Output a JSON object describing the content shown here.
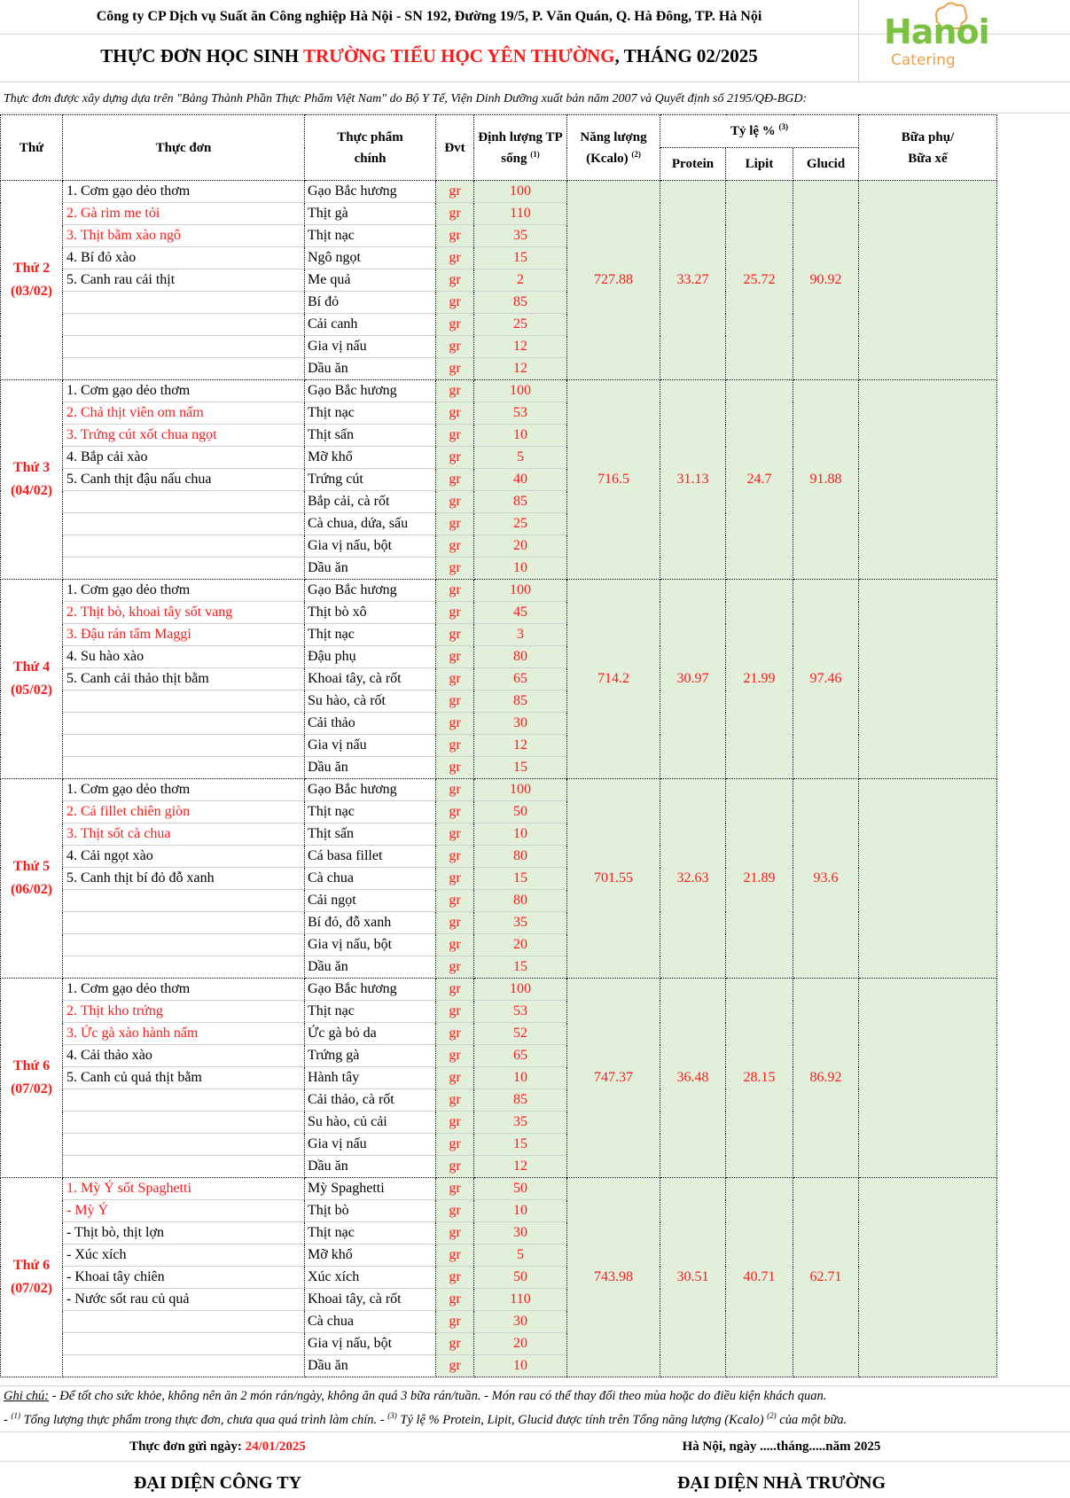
{
  "header": {
    "company": "Công ty CP Dịch vụ Suất ăn Công nghiệp Hà Nội - SN 192, Đường 19/5, P. Văn Quán, Q. Hà Đông, TP. Hà Nội",
    "title_prefix": "THỰC ĐƠN HỌC SINH ",
    "title_school": "TRƯỜNG TIỂU HỌC YÊN THƯỜNG",
    "title_suffix": ", THÁNG 02/2025",
    "logo_top": "Hanoi",
    "logo_bottom": "Catering",
    "note": "Thực đơn được xây dựng dựa trên \"Bảng Thành Phần Thực Phẩm Việt Nam\" do Bộ Y Tế, Viện Dinh Dưỡng xuất bản năm 2007 và Quyết định số 2195/QĐ-BGD:"
  },
  "columns": {
    "thu": "Thứ",
    "thuc_don": "Thực đơn",
    "thuc_pham": "Thực phẩm chính",
    "dvt": "Đvt",
    "dinh_luong": "Định lượng TP sống",
    "dinh_luong_sup": "(1)",
    "nang_luong": "Năng lượng (Kcalo)",
    "nang_luong_sup": "(2)",
    "ty_le": "Tỷ lệ %",
    "ty_le_sup": "(3)",
    "protein": "Protein",
    "lipit": "Lipit",
    "glucid": "Glucid",
    "bua_phu": "Bữa phụ/ Bữa xế"
  },
  "colors": {
    "accent_red": "#ff1a1a",
    "summary_green": "#e2efda",
    "logo_green": "#7cc242",
    "logo_orange": "#f0a04b"
  },
  "days": [
    {
      "day": "Thứ 2",
      "date": "(03/02)",
      "dishes": [
        {
          "text": "1. Cơm gạo dẻo thơm",
          "red": false
        },
        {
          "text": "2. Gà rim me tỏi",
          "red": true
        },
        {
          "text": "3. Thịt bằm xào ngô",
          "red": true
        },
        {
          "text": "4. Bí đỏ xào",
          "red": false
        },
        {
          "text": "5. Canh rau cải thịt",
          "red": false
        }
      ],
      "ingredients": [
        {
          "name": "Gạo Bắc hương",
          "unit": "gr",
          "qty": "100"
        },
        {
          "name": "Thịt gà",
          "unit": "gr",
          "qty": "110"
        },
        {
          "name": "Thịt nạc",
          "unit": "gr",
          "qty": "35"
        },
        {
          "name": "Ngô ngọt",
          "unit": "gr",
          "qty": "15"
        },
        {
          "name": "Me quả",
          "unit": "gr",
          "qty": "2"
        },
        {
          "name": "Bí đỏ",
          "unit": "gr",
          "qty": "85"
        },
        {
          "name": "Cải canh",
          "unit": "gr",
          "qty": "25"
        },
        {
          "name": "Gia vị nấu",
          "unit": "gr",
          "qty": "12"
        },
        {
          "name": "Dầu ăn",
          "unit": "gr",
          "qty": "12"
        }
      ],
      "energy": "727.88",
      "protein": "33.27",
      "lipit": "25.72",
      "glucid": "90.92"
    },
    {
      "day": "Thứ 3",
      "date": "(04/02)",
      "dishes": [
        {
          "text": "1. Cơm gạo dẻo thơm",
          "red": false
        },
        {
          "text": "2. Chả thịt viên om nấm",
          "red": true
        },
        {
          "text": "3. Trứng cút xốt chua ngọt",
          "red": true
        },
        {
          "text": "4. Bắp cải xào",
          "red": false
        },
        {
          "text": "5. Canh thịt đậu nấu chua",
          "red": false
        }
      ],
      "ingredients": [
        {
          "name": "Gạo Bắc hương",
          "unit": "gr",
          "qty": "100"
        },
        {
          "name": "Thịt nạc",
          "unit": "gr",
          "qty": "53"
        },
        {
          "name": "Thịt sấn",
          "unit": "gr",
          "qty": "10"
        },
        {
          "name": "Mỡ khổ",
          "unit": "gr",
          "qty": "5"
        },
        {
          "name": "Trứng cút",
          "unit": "gr",
          "qty": "40"
        },
        {
          "name": "Bắp cải, cà rốt",
          "unit": "gr",
          "qty": "85"
        },
        {
          "name": "Cà chua, dứa, sấu",
          "unit": "gr",
          "qty": "25"
        },
        {
          "name": "Gia vị nấu, bột",
          "unit": "gr",
          "qty": "20"
        },
        {
          "name": "Dầu ăn",
          "unit": "gr",
          "qty": "10"
        }
      ],
      "energy": "716.5",
      "protein": "31.13",
      "lipit": "24.7",
      "glucid": "91.88"
    },
    {
      "day": "Thứ 4",
      "date": "(05/02)",
      "dishes": [
        {
          "text": "1. Cơm gạo dẻo thơm",
          "red": false
        },
        {
          "text": "2. Thịt bò, khoai tây sốt vang",
          "red": true
        },
        {
          "text": "3. Đậu rán tẩm Maggi",
          "red": true
        },
        {
          "text": "4. Su hào xào",
          "red": false
        },
        {
          "text": "5. Canh cải thảo thịt bằm",
          "red": false
        }
      ],
      "ingredients": [
        {
          "name": "Gạo Bắc hương",
          "unit": "gr",
          "qty": "100"
        },
        {
          "name": "Thịt bò xô",
          "unit": "gr",
          "qty": "45"
        },
        {
          "name": "Thịt nạc",
          "unit": "gr",
          "qty": "3"
        },
        {
          "name": "Đậu phụ",
          "unit": "gr",
          "qty": "80"
        },
        {
          "name": "Khoai tây, cà rốt",
          "unit": "gr",
          "qty": "65"
        },
        {
          "name": "Su hào, cà rốt",
          "unit": "gr",
          "qty": "85"
        },
        {
          "name": "Cải thảo",
          "unit": "gr",
          "qty": "30"
        },
        {
          "name": "Gia vị nấu",
          "unit": "gr",
          "qty": "12"
        },
        {
          "name": "Dầu ăn",
          "unit": "gr",
          "qty": "15"
        }
      ],
      "energy": "714.2",
      "protein": "30.97",
      "lipit": "21.99",
      "glucid": "97.46"
    },
    {
      "day": "Thứ 5",
      "date": "(06/02)",
      "dishes": [
        {
          "text": "1. Cơm gạo dẻo thơm",
          "red": false
        },
        {
          "text": "2. Cá fillet chiên giòn",
          "red": true
        },
        {
          "text": "3. Thịt sốt cà chua",
          "red": true
        },
        {
          "text": "4. Cải ngọt xào",
          "red": false
        },
        {
          "text": "5. Canh thịt bí đỏ đỗ xanh",
          "red": false
        }
      ],
      "ingredients": [
        {
          "name": "Gạo Bắc hương",
          "unit": "gr",
          "qty": "100"
        },
        {
          "name": "Thịt nạc",
          "unit": "gr",
          "qty": "50"
        },
        {
          "name": "Thịt sấn",
          "unit": "gr",
          "qty": "10"
        },
        {
          "name": "Cá basa fillet",
          "unit": "gr",
          "qty": "80"
        },
        {
          "name": "Cà chua",
          "unit": "gr",
          "qty": "15"
        },
        {
          "name": "Cải ngọt",
          "unit": "gr",
          "qty": "80"
        },
        {
          "name": "Bí đỏ, đỗ xanh",
          "unit": "gr",
          "qty": "35"
        },
        {
          "name": "Gia vị nấu, bột",
          "unit": "gr",
          "qty": "20"
        },
        {
          "name": "Dầu ăn",
          "unit": "gr",
          "qty": "15"
        }
      ],
      "energy": "701.55",
      "protein": "32.63",
      "lipit": "21.89",
      "glucid": "93.6"
    },
    {
      "day": "Thứ 6",
      "date": "(07/02)",
      "dishes": [
        {
          "text": "1. Cơm gạo dẻo thơm",
          "red": false
        },
        {
          "text": "2. Thịt kho trứng",
          "red": true
        },
        {
          "text": "3. Ức gà xào hành nấm",
          "red": true
        },
        {
          "text": "4. Cải thảo xào",
          "red": false
        },
        {
          "text": "5. Canh củ quả thịt bằm",
          "red": false
        }
      ],
      "ingredients": [
        {
          "name": "Gạo Bắc hương",
          "unit": "gr",
          "qty": "100"
        },
        {
          "name": "Thịt nạc",
          "unit": "gr",
          "qty": "53"
        },
        {
          "name": "Ức gà bỏ da",
          "unit": "gr",
          "qty": "52"
        },
        {
          "name": "Trứng gà",
          "unit": "gr",
          "qty": "65"
        },
        {
          "name": "Hành tây",
          "unit": "gr",
          "qty": "10"
        },
        {
          "name": "Cải thảo, cà rốt",
          "unit": "gr",
          "qty": "85"
        },
        {
          "name": "Su hào, củ cải",
          "unit": "gr",
          "qty": "35"
        },
        {
          "name": "Gia vị nấu",
          "unit": "gr",
          "qty": "15"
        },
        {
          "name": "Dầu ăn",
          "unit": "gr",
          "qty": "12"
        }
      ],
      "energy": "747.37",
      "protein": "36.48",
      "lipit": "28.15",
      "glucid": "86.92"
    },
    {
      "day": "Thứ 6",
      "date": "(07/02)",
      "dishes": [
        {
          "text": "1. Mỳ Ý sốt Spaghetti",
          "red": true
        },
        {
          "text": "- Mỳ Ý",
          "red": true
        },
        {
          "text": "- Thịt bò, thịt lợn",
          "red": false
        },
        {
          "text": "- Xúc xích",
          "red": false
        },
        {
          "text": "- Khoai tây chiên",
          "red": false
        },
        {
          "text": "- Nước sốt rau củ quả",
          "red": false
        }
      ],
      "ingredients": [
        {
          "name": "Mỳ Spaghetti",
          "unit": "gr",
          "qty": "50"
        },
        {
          "name": "Thịt bò",
          "unit": "gr",
          "qty": "10"
        },
        {
          "name": "Thịt nạc",
          "unit": "gr",
          "qty": "30"
        },
        {
          "name": "Mỡ khổ",
          "unit": "gr",
          "qty": "5"
        },
        {
          "name": "Xúc xích",
          "unit": "gr",
          "qty": "50"
        },
        {
          "name": "Khoai tây, cà rốt",
          "unit": "gr",
          "qty": "110"
        },
        {
          "name": "Cà chua",
          "unit": "gr",
          "qty": "30"
        },
        {
          "name": "Gia vị nấu, bột",
          "unit": "gr",
          "qty": "20"
        },
        {
          "name": "Dầu ăn",
          "unit": "gr",
          "qty": "10"
        }
      ],
      "energy": "743.98",
      "protein": "30.51",
      "lipit": "40.71",
      "glucid": "62.71"
    }
  ],
  "footer": {
    "ghichu_label": "Ghi chú:",
    "ghichu_text": " - Để tốt cho sức khỏe, không nên ăn 2 món rán/ngày, không ăn quá 3 bữa rán/tuần. - Món rau có thể thay đổi theo mùa hoặc do điều kiện khách quan.",
    "fn1_sup": "(1)",
    "fn1_text": " Tổng lượng thực phẩm trong thực đơn, chưa qua quá trình làm chín. - ",
    "fn3_sup": "(3)",
    "fn3_text": " Tỷ lệ % Protein, Lipit, Glucid được tính trên Tổng năng lượng (Kcalo)",
    "fn2_sup": "(2)",
    "fn3_end": "  của một bữa.",
    "sent_label": "Thực đơn gửi ngày: ",
    "sent_date": "24/01/2025",
    "place_date": "Hà Nội, ngày .....tháng.....năm 2025",
    "rep_company": "ĐẠI DIỆN CÔNG TY",
    "rep_school": "ĐẠI DIỆN NHÀ TRƯỜNG"
  }
}
